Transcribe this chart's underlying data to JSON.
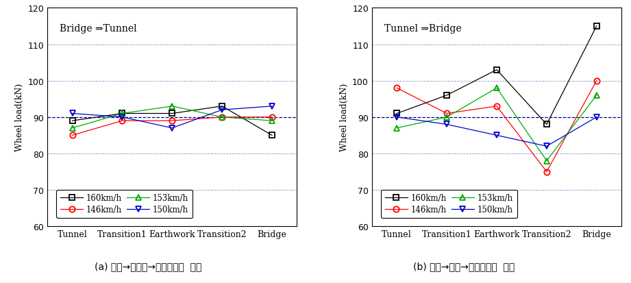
{
  "categories": [
    "Tunnel",
    "Transition1",
    "Earthwork",
    "Transition2",
    "Bridge"
  ],
  "left_title": "Bridge ⇒Tunnel",
  "right_title": "Tunnel ⇒Bridge",
  "ylabel": "Wheel load(kN)",
  "ylim": [
    60,
    120
  ],
  "yticks": [
    60,
    70,
    80,
    90,
    100,
    110,
    120
  ],
  "caption_left": "(a) 터널→토공부→교량구간의  윤중",
  "caption_right": "(b) 교량→토공→터널구간의  윤중",
  "series": [
    {
      "label": "160km/h",
      "color": "#000000",
      "marker": "s",
      "left_values": [
        89,
        91,
        91,
        93,
        85
      ],
      "right_values": [
        91,
        96,
        103,
        88,
        115
      ]
    },
    {
      "label": "146km/h",
      "color": "#ff0000",
      "marker": "o",
      "left_values": [
        85,
        89,
        89,
        90,
        90
      ],
      "right_values": [
        98,
        91,
        93,
        75,
        100
      ]
    },
    {
      "label": "153km/h",
      "color": "#00aa00",
      "marker": "^",
      "left_values": [
        87,
        91,
        93,
        90,
        89
      ],
      "right_values": [
        87,
        90,
        98,
        78,
        96
      ]
    },
    {
      "label": "150km/h",
      "color": "#0000cc",
      "marker": "v",
      "left_values": [
        91,
        90,
        87,
        92,
        93
      ],
      "right_values": [
        90,
        88,
        85,
        82,
        90
      ]
    }
  ],
  "background_color": "#ffffff",
  "dashed_line_y": 90
}
